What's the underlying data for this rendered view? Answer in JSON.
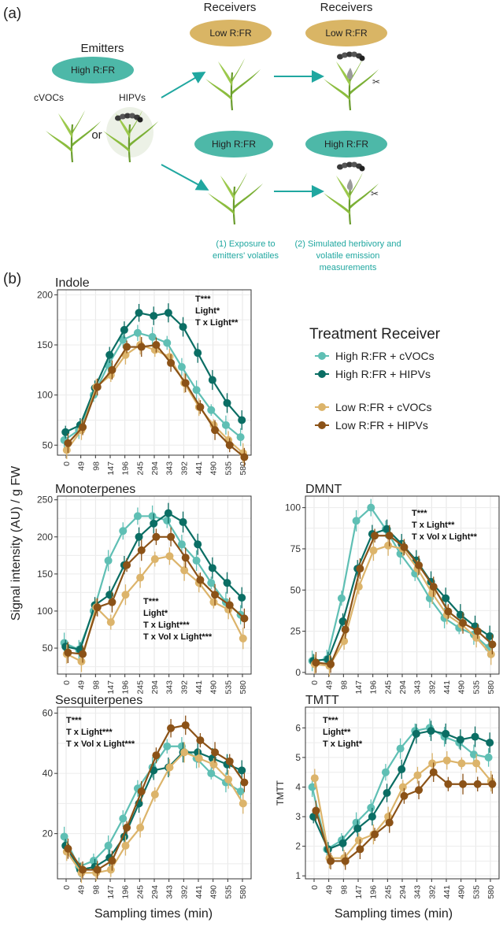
{
  "schematic": {
    "panel_label": "(a)",
    "emitters_title": "Emitters",
    "emitter_light": "High R:FR",
    "cvocs_label": "cVOCs",
    "hipvs_label": "HIPVs",
    "or_label": "or",
    "receivers_title_1": "Receivers",
    "receivers_title_2": "Receivers",
    "low_pill_1": "Low R:FR",
    "low_pill_2": "Low R:FR",
    "high_pill_1": "High R:FR",
    "high_pill_2": "High R:FR",
    "step1_line1": "(1) Exposure to",
    "step1_line2": "emitters' volatiles",
    "step2_line1": "(2) Simulated herbivory and",
    "step2_line2": "volatile emission",
    "step2_line3": "measurements",
    "colors": {
      "high_pill": "#4db8a8",
      "low_pill": "#d9b565",
      "arrow": "#20a7a0"
    }
  },
  "panel_b_label": "(b)",
  "y_axis_title": "Signal intensity (AU) / g FW",
  "x_axis_title_left": "Sampling times (min)",
  "x_axis_title_right": "Sampling times (min)",
  "legend": {
    "title": "Treatment Receiver",
    "items": [
      {
        "label": "High R:FR + cVOCs",
        "color": "#5fbfb4"
      },
      {
        "label": "High R:FR + HIPVs",
        "color": "#0b6e64"
      },
      {
        "label": "Low R:FR + cVOCs",
        "color": "#dcb46b"
      },
      {
        "label": "Low R:FR + HIPVs",
        "color": "#8b5217"
      }
    ]
  },
  "chart_data": [
    {
      "type": "line",
      "title": "Indole",
      "x": [
        0,
        49,
        98,
        147,
        196,
        245,
        294,
        343,
        392,
        441,
        490,
        535,
        580
      ],
      "ylim": [
        40,
        205
      ],
      "yticks": [
        50,
        100,
        150,
        200
      ],
      "ylabel": "",
      "stats": [
        "T***",
        "Light*",
        "T x Light**"
      ],
      "series": [
        {
          "name": "High R:FR + cVOCs",
          "values": [
            55,
            65,
            100,
            130,
            155,
            162,
            158,
            152,
            128,
            105,
            85,
            70,
            58
          ]
        },
        {
          "name": "High R:FR + HIPVs",
          "values": [
            63,
            70,
            107,
            140,
            165,
            182,
            179,
            182,
            168,
            142,
            115,
            92,
            75
          ]
        },
        {
          "name": "Low R:FR + cVOCs",
          "values": [
            45,
            65,
            108,
            120,
            140,
            150,
            145,
            138,
            112,
            88,
            70,
            55,
            42
          ]
        },
        {
          "name": "Low R:FR + HIPVs",
          "values": [
            52,
            68,
            108,
            125,
            148,
            148,
            150,
            132,
            112,
            88,
            65,
            50,
            38
          ]
        }
      ]
    },
    {
      "type": "line",
      "title": "Monoterpenes",
      "x": [
        0,
        49,
        98,
        147,
        196,
        245,
        294,
        343,
        392,
        441,
        490,
        535,
        580
      ],
      "ylim": [
        15,
        255
      ],
      "yticks": [
        50,
        100,
        150,
        200,
        250
      ],
      "ylabel": "",
      "stats": [
        "T***",
        "Light*",
        "T x Light***",
        "T x Vol x Light***"
      ],
      "series": [
        {
          "name": "High R:FR + cVOCs",
          "values": [
            57,
            48,
            100,
            168,
            208,
            228,
            228,
            222,
            190,
            168,
            138,
            112,
            95
          ]
        },
        {
          "name": "High R:FR + HIPVs",
          "values": [
            52,
            48,
            108,
            122,
            162,
            200,
            218,
            232,
            220,
            190,
            158,
            138,
            118
          ]
        },
        {
          "name": "Low R:FR + cVOCs",
          "values": [
            42,
            32,
            105,
            85,
            122,
            145,
            170,
            174,
            155,
            138,
            112,
            102,
            63
          ]
        },
        {
          "name": "Low R:FR + HIPVs",
          "values": [
            44,
            42,
            105,
            112,
            162,
            182,
            200,
            200,
            172,
            142,
            122,
            108,
            90
          ]
        }
      ]
    },
    {
      "type": "line",
      "title": "DMNT",
      "x": [
        0,
        49,
        98,
        147,
        196,
        245,
        294,
        343,
        392,
        441,
        490,
        535,
        580
      ],
      "ylim": [
        -1,
        107
      ],
      "yticks": [
        0,
        25,
        50,
        75,
        100
      ],
      "ylabel": "",
      "stats": [
        "T***",
        "T x Light**",
        "T x Vol x Light**"
      ],
      "series": [
        {
          "name": "High R:FR + cVOCs",
          "values": [
            7,
            8,
            45,
            92,
            100,
            87,
            72,
            60,
            45,
            33,
            27,
            23,
            15
          ]
        },
        {
          "name": "High R:FR + HIPVs",
          "values": [
            7,
            8,
            31,
            63,
            84,
            87,
            78,
            68,
            55,
            45,
            35,
            28,
            22
          ]
        },
        {
          "name": "Low R:FR + cVOCs",
          "values": [
            5,
            4,
            19,
            52,
            74,
            77,
            75,
            63,
            48,
            35,
            29,
            21,
            11
          ]
        },
        {
          "name": "Low R:FR + HIPVs",
          "values": [
            6,
            5,
            26,
            63,
            83,
            83,
            76,
            65,
            52,
            37,
            30,
            25,
            17
          ]
        }
      ]
    },
    {
      "type": "line",
      "title": "Sesquiterpenes",
      "x": [
        0,
        49,
        98,
        147,
        196,
        245,
        294,
        343,
        392,
        441,
        490,
        535,
        580
      ],
      "ylim": [
        5,
        62
      ],
      "yticks": [
        20,
        40,
        60
      ],
      "ylabel": "",
      "stats": [
        "T***",
        "T x Light***",
        "T x Vol x Light***"
      ],
      "series": [
        {
          "name": "High R:FR + cVOCs",
          "values": [
            19,
            9,
            11,
            16,
            25,
            35,
            42,
            49,
            49,
            45,
            40,
            37,
            34
          ]
        },
        {
          "name": "High R:FR + HIPVs",
          "values": [
            16,
            8,
            9,
            12,
            19,
            30,
            41,
            42,
            47,
            47,
            45,
            43,
            41
          ]
        },
        {
          "name": "Low R:FR + cVOCs",
          "values": [
            14,
            7,
            7,
            8,
            16,
            22,
            33,
            42,
            47,
            45,
            43,
            38,
            30
          ]
        },
        {
          "name": "Low R:FR + HIPVs",
          "values": [
            15,
            8,
            8,
            11,
            22,
            34,
            46,
            55,
            56,
            51,
            47,
            44,
            37
          ]
        }
      ]
    },
    {
      "type": "line",
      "title": "TMTT",
      "x": [
        0,
        49,
        98,
        147,
        196,
        245,
        294,
        343,
        392,
        441,
        490,
        535,
        580
      ],
      "ylim": [
        0.9,
        6.7
      ],
      "yticks": [
        1,
        2,
        3,
        4,
        5,
        6
      ],
      "ylabel": "TMTT",
      "stats": [
        "T***",
        "Light**",
        "T x Light*"
      ],
      "series": [
        {
          "name": "High R:FR + cVOCs",
          "values": [
            4.0,
            1.9,
            2.2,
            2.8,
            3.3,
            4.5,
            5.3,
            5.9,
            6.0,
            5.7,
            5.5,
            5.1,
            5.0
          ]
        },
        {
          "name": "High R:FR + HIPVs",
          "values": [
            3.0,
            1.9,
            2.1,
            2.6,
            3.0,
            3.8,
            4.6,
            5.8,
            5.9,
            5.8,
            5.6,
            5.7,
            5.5
          ]
        },
        {
          "name": "Low R:FR + cVOCs",
          "values": [
            4.3,
            1.6,
            1.6,
            2.2,
            2.4,
            3.0,
            4.0,
            4.4,
            4.8,
            4.9,
            4.8,
            4.8,
            4.2
          ]
        },
        {
          "name": "Low R:FR + HIPVs",
          "values": [
            3.2,
            1.5,
            1.5,
            1.9,
            2.4,
            2.8,
            3.7,
            3.9,
            4.5,
            4.1,
            4.1,
            4.1,
            4.1
          ]
        }
      ]
    }
  ]
}
